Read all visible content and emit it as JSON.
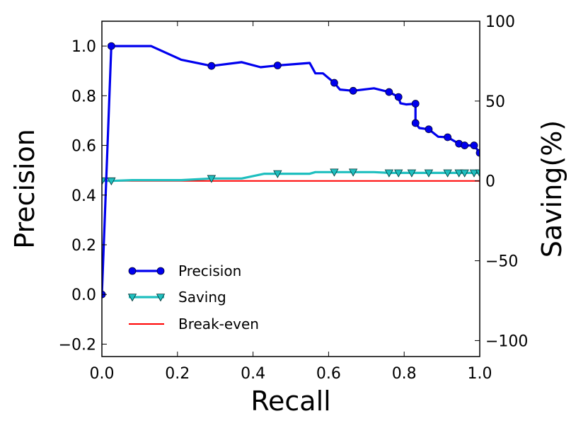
{
  "chart_data": {
    "type": "line",
    "xlabel": "Recall",
    "ylabel": "Precision",
    "y2label": "Saving(%)",
    "xlim": [
      0.0,
      1.0
    ],
    "ylim": [
      -0.25,
      1.1
    ],
    "y2lim": [
      -110,
      100
    ],
    "xticks": [
      "0.0",
      "0.2",
      "0.4",
      "0.6",
      "0.8",
      "1.0"
    ],
    "yticks": [
      "−0.2",
      "0.0",
      "0.2",
      "0.4",
      "0.6",
      "0.8",
      "1.0"
    ],
    "y2ticks": [
      "100",
      "50",
      "0",
      "−50",
      "−100"
    ],
    "grid": false,
    "legend_position": "lower-left",
    "series": [
      {
        "name": "Precision",
        "axis": "left",
        "color": "#0000ee",
        "marker": "circle",
        "line": [
          [
            0.0,
            0.0
          ],
          [
            0.025,
            1.0
          ],
          [
            0.13,
            1.0
          ],
          [
            0.21,
            0.945
          ],
          [
            0.29,
            0.92
          ],
          [
            0.37,
            0.935
          ],
          [
            0.42,
            0.915
          ],
          [
            0.465,
            0.922
          ],
          [
            0.55,
            0.932
          ],
          [
            0.565,
            0.89
          ],
          [
            0.585,
            0.89
          ],
          [
            0.615,
            0.852
          ],
          [
            0.63,
            0.825
          ],
          [
            0.665,
            0.82
          ],
          [
            0.72,
            0.83
          ],
          [
            0.76,
            0.815
          ],
          [
            0.785,
            0.795
          ],
          [
            0.79,
            0.77
          ],
          [
            0.805,
            0.765
          ],
          [
            0.83,
            0.768
          ],
          [
            0.83,
            0.69
          ],
          [
            0.84,
            0.67
          ],
          [
            0.865,
            0.665
          ],
          [
            0.89,
            0.635
          ],
          [
            0.915,
            0.633
          ],
          [
            0.945,
            0.607
          ],
          [
            0.96,
            0.6
          ],
          [
            0.985,
            0.6
          ],
          [
            1.0,
            0.57
          ]
        ],
        "markers": [
          [
            0.0,
            0.0
          ],
          [
            0.025,
            1.0
          ],
          [
            0.29,
            0.92
          ],
          [
            0.465,
            0.922
          ],
          [
            0.615,
            0.852
          ],
          [
            0.665,
            0.82
          ],
          [
            0.76,
            0.815
          ],
          [
            0.785,
            0.795
          ],
          [
            0.83,
            0.768
          ],
          [
            0.83,
            0.69
          ],
          [
            0.865,
            0.665
          ],
          [
            0.915,
            0.633
          ],
          [
            0.945,
            0.607
          ],
          [
            0.96,
            0.6
          ],
          [
            0.985,
            0.6
          ],
          [
            1.0,
            0.57
          ]
        ]
      },
      {
        "name": "Saving",
        "axis": "right",
        "color": "#1fbfbf",
        "marker": "triangle-down",
        "line": [
          [
            0.0,
            0.0
          ],
          [
            0.025,
            0.0
          ],
          [
            0.08,
            0.5
          ],
          [
            0.21,
            0.5
          ],
          [
            0.29,
            1.5
          ],
          [
            0.37,
            1.5
          ],
          [
            0.43,
            4.5
          ],
          [
            0.465,
            4.5
          ],
          [
            0.55,
            4.5
          ],
          [
            0.565,
            5.5
          ],
          [
            0.6,
            5.5
          ],
          [
            0.72,
            5.5
          ],
          [
            0.76,
            5.0
          ],
          [
            0.8,
            5.0
          ],
          [
            0.9,
            5.0
          ],
          [
            1.0,
            5.0
          ]
        ],
        "markers": [
          [
            0.0,
            0.0
          ],
          [
            0.025,
            0.0
          ],
          [
            0.29,
            1.5
          ],
          [
            0.465,
            4.5
          ],
          [
            0.615,
            5.5
          ],
          [
            0.665,
            5.5
          ],
          [
            0.76,
            5.0
          ],
          [
            0.785,
            5.0
          ],
          [
            0.82,
            5.0
          ],
          [
            0.865,
            5.0
          ],
          [
            0.915,
            5.0
          ],
          [
            0.945,
            5.0
          ],
          [
            0.96,
            5.0
          ],
          [
            0.985,
            5.0
          ],
          [
            1.0,
            5.0
          ]
        ]
      },
      {
        "name": "Break-even",
        "axis": "right",
        "color": "#ff0000",
        "marker": "none",
        "line": [
          [
            0.0,
            0.0
          ],
          [
            1.0,
            0.0
          ]
        ]
      }
    ]
  }
}
